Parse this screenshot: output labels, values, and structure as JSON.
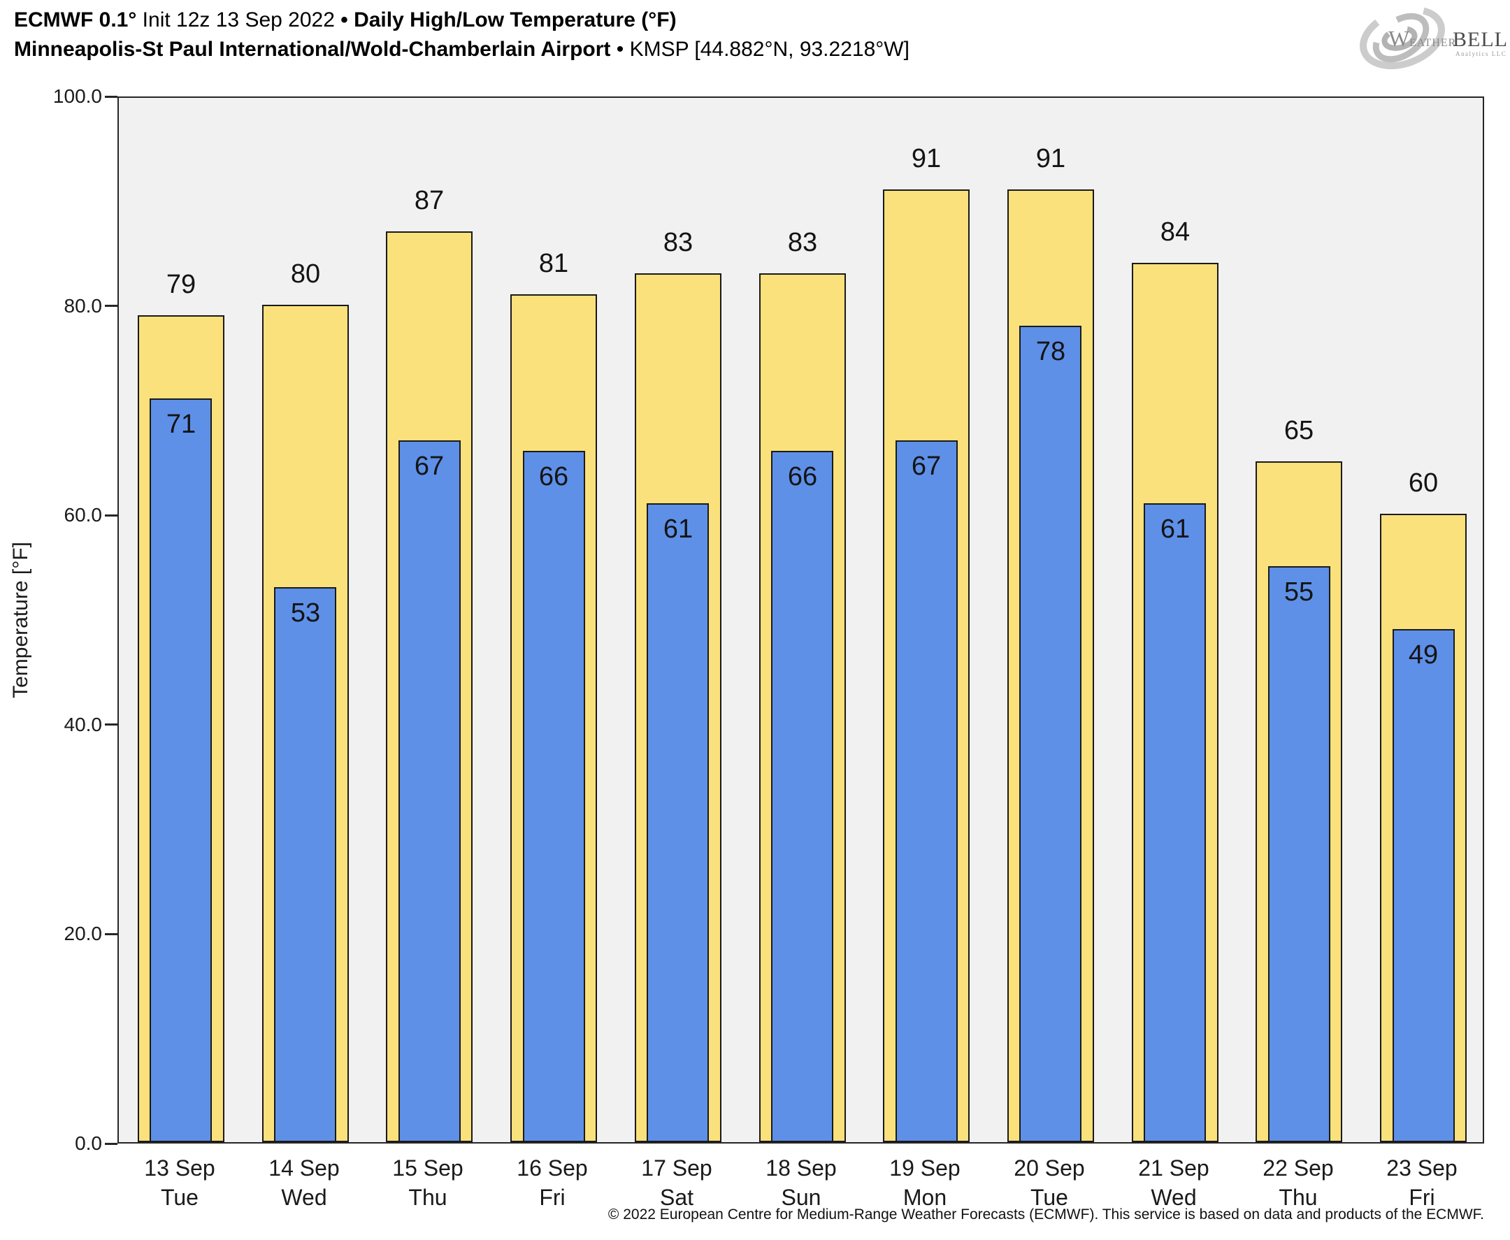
{
  "header": {
    "line1": {
      "p1": "ECMWF 0.1°",
      "p2": " Init 12z 13 Sep 2022 ",
      "p3": "• Daily High/Low Temperature (°F)"
    },
    "line2": {
      "p1": "Minneapolis-St Paul International/Wold-Chamberlain Airport",
      "p2": " • ",
      "p3": "KMSP [44.882°N, 93.2218°W]"
    }
  },
  "logo": {
    "w": "W",
    "eather": "EATHER",
    "bell": "BELL",
    "subtext": "Analytics LLC"
  },
  "chart_data": {
    "type": "bar",
    "title": "ECMWF 0.1° Init 12z 13 Sep 2022 • Daily High/Low Temperature (°F)",
    "subtitle": "Minneapolis-St Paul International/Wold-Chamberlain Airport • KMSP [44.882°N, 93.2218°W]",
    "station": "KMSP",
    "lat": "44.882°N",
    "lon": "93.2218°W",
    "categories": [
      {
        "date": "13 Sep",
        "day": "Tue"
      },
      {
        "date": "14 Sep",
        "day": "Wed"
      },
      {
        "date": "15 Sep",
        "day": "Thu"
      },
      {
        "date": "16 Sep",
        "day": "Fri"
      },
      {
        "date": "17 Sep",
        "day": "Sat"
      },
      {
        "date": "18 Sep",
        "day": "Sun"
      },
      {
        "date": "19 Sep",
        "day": "Mon"
      },
      {
        "date": "20 Sep",
        "day": "Tue"
      },
      {
        "date": "21 Sep",
        "day": "Wed"
      },
      {
        "date": "22 Sep",
        "day": "Thu"
      },
      {
        "date": "23 Sep",
        "day": "Fri"
      }
    ],
    "series": [
      {
        "name": "High",
        "color": "#fae17b",
        "values": [
          79,
          80,
          87,
          81,
          83,
          83,
          91,
          91,
          84,
          65,
          60
        ]
      },
      {
        "name": "Low",
        "color": "#5e90e8",
        "values": [
          71,
          53,
          67,
          66,
          61,
          66,
          67,
          78,
          61,
          55,
          49
        ]
      }
    ],
    "xlabel": "",
    "ylabel": "Temperature [°F]",
    "ylim": [
      0,
      100
    ],
    "yticks": [
      "0.0",
      "20.0",
      "40.0",
      "60.0",
      "80.0",
      "100.0"
    ],
    "grid": false,
    "legend": "none",
    "plot_bg": "#f1f1f1",
    "bar_edge_color": "#1a1a1a"
  },
  "footer": {
    "copyright": "© 2022 European Centre for Medium-Range Weather Forecasts (ECMWF). This service is based on data and products of the ECMWF."
  }
}
